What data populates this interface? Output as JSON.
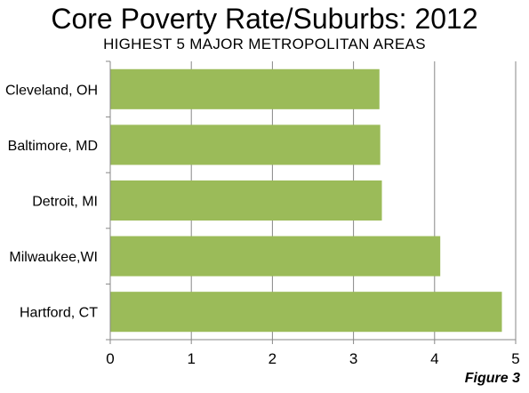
{
  "title": "Core Poverty Rate/Suburbs: 2012",
  "subtitle": "HIGHEST 5 MAJOR METROPOLITAN AREAS",
  "figure_label": "Figure 3",
  "colors": {
    "bar": "#9BBB59",
    "grid": "#878787",
    "axis": "#878787"
  },
  "chart_data": {
    "type": "bar",
    "orientation": "horizontal",
    "title": "Core Poverty Rate/Suburbs: 2012",
    "subtitle": "HIGHEST 5 MAJOR METROPOLITAN AREAS",
    "categories": [
      "Cleveland, OH",
      "Baltimore, MD",
      "Detroit,  MI",
      "Milwaukee,WI",
      "Hartford, CT"
    ],
    "values": [
      3.32,
      3.33,
      3.35,
      4.07,
      4.83
    ],
    "xlim": [
      0,
      5
    ],
    "xticks": [
      0,
      1,
      2,
      3,
      4,
      5
    ],
    "xlabel": "",
    "ylabel": "",
    "grid": "vertical",
    "legend": "none"
  }
}
